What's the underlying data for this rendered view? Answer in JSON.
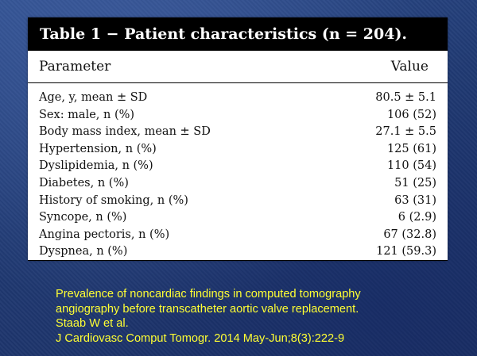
{
  "table": {
    "caption": "Table 1 − Patient characteristics (n = 204).",
    "headers": {
      "parameter": "Parameter",
      "value": "Value"
    },
    "rows": [
      {
        "parameter": "Age, y, mean ± SD",
        "value": "80.5 ± 5.1"
      },
      {
        "parameter": "Sex: male, n (%)",
        "value": "106 (52)"
      },
      {
        "parameter": "Body mass index, mean ± SD",
        "value": "27.1 ± 5.5"
      },
      {
        "parameter": "Hypertension, n (%)",
        "value": "125 (61)"
      },
      {
        "parameter": "Dyslipidemia, n (%)",
        "value": "110 (54)"
      },
      {
        "parameter": "Diabetes, n (%)",
        "value": "51 (25)"
      },
      {
        "parameter": "History of smoking, n (%)",
        "value": "63 (31)"
      },
      {
        "parameter": "Syncope, n (%)",
        "value": "6 (2.9)"
      },
      {
        "parameter": "Angina pectoris, n (%)",
        "value": "67 (32.8)"
      },
      {
        "parameter": "Dyspnea, n (%)",
        "value": "121 (59.3)"
      }
    ]
  },
  "citation": {
    "lines": [
      "Prevalence of noncardiac findings in computed tomography",
      "angiography before transcatheter aortic valve replacement.",
      "Staab W et al.",
      "J Cardiovasc Comput Tomogr. 2014 May-Jun;8(3):222-9"
    ]
  },
  "colors": {
    "background": "#203a73",
    "citation_text": "#ffff33",
    "caption_bar": "#000000"
  }
}
